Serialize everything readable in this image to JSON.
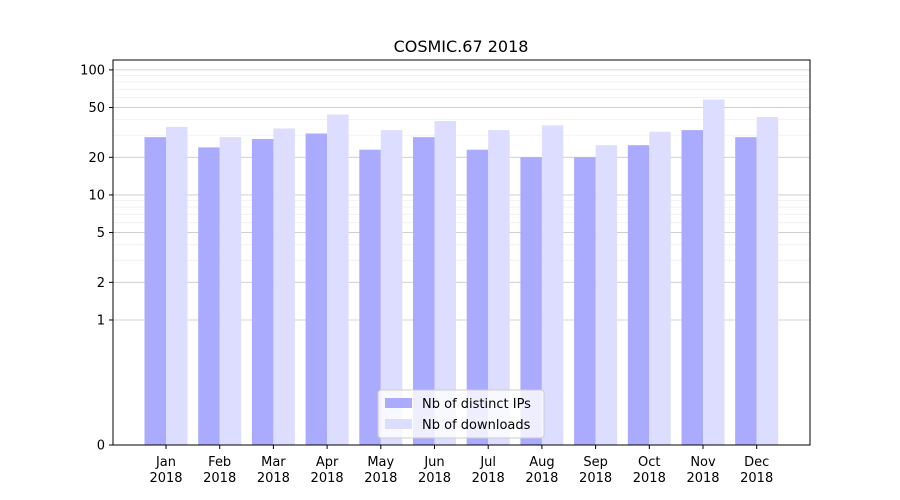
{
  "chart_data": {
    "type": "bar",
    "title": "COSMIC.67 2018",
    "xlabel": "",
    "ylabel": "",
    "y_scale": "symlog",
    "ylim": [
      0,
      120
    ],
    "grid": "horizontal",
    "legend_position": "lower-center",
    "categories": [
      "Jan\n2018",
      "Feb\n2018",
      "Mar\n2018",
      "Apr\n2018",
      "May\n2018",
      "Jun\n2018",
      "Jul\n2018",
      "Aug\n2018",
      "Sep\n2018",
      "Oct\n2018",
      "Nov\n2018",
      "Dec\n2018"
    ],
    "y_ticks": [
      0,
      1,
      2,
      5,
      10,
      20,
      50,
      100
    ],
    "series": [
      {
        "name": "Nb of distinct IPs",
        "color": "#aaaaff",
        "values": [
          29,
          24,
          28,
          31,
          23,
          29,
          23,
          20,
          20,
          25,
          33,
          29
        ]
      },
      {
        "name": "Nb of downloads",
        "color": "#ddddff",
        "values": [
          35,
          29,
          34,
          44,
          33,
          39,
          33,
          36,
          25,
          32,
          58,
          42
        ]
      }
    ]
  }
}
